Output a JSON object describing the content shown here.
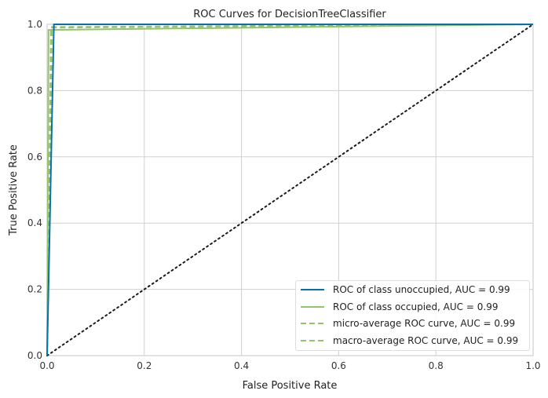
{
  "chart_data": {
    "type": "line",
    "title": "ROC Curves for DecisionTreeClassifier",
    "xlabel": "False Positive Rate",
    "ylabel": "True Positive Rate",
    "xlim": [
      0,
      1
    ],
    "ylim": [
      0,
      1
    ],
    "xticks": [
      "0.0",
      "0.2",
      "0.4",
      "0.6",
      "0.8",
      "1.0"
    ],
    "yticks": [
      "0.0",
      "0.2",
      "0.4",
      "0.6",
      "0.8",
      "1.0"
    ],
    "grid": true,
    "legend_position": "lower-right",
    "series": [
      {
        "name": "ROC of class unoccupied, AUC = 0.99",
        "color": "#0a70a8",
        "style": "solid",
        "x": [
          0,
          0.014,
          1
        ],
        "y": [
          0,
          1.0,
          1.0
        ]
      },
      {
        "name": "ROC of class occupied, AUC = 0.99",
        "color": "#94c36d",
        "style": "solid",
        "x": [
          0,
          0.003,
          1
        ],
        "y": [
          0,
          0.983,
          1.0
        ]
      },
      {
        "name": "micro-average ROC curve, AUC = 0.99",
        "color": "#94c36d",
        "style": "dashed",
        "x": [
          0,
          0.008,
          1
        ],
        "y": [
          0,
          0.99,
          1.0
        ]
      },
      {
        "name": "macro-average ROC curve, AUC = 0.99",
        "color": "#94c36d",
        "style": "dashed",
        "x": [
          0,
          0.01,
          1
        ],
        "y": [
          0,
          0.992,
          1.0
        ]
      }
    ],
    "diagonal": {
      "x": [
        0,
        1
      ],
      "y": [
        0,
        1
      ],
      "color": "#1a1a1a",
      "style": "dotted"
    }
  }
}
